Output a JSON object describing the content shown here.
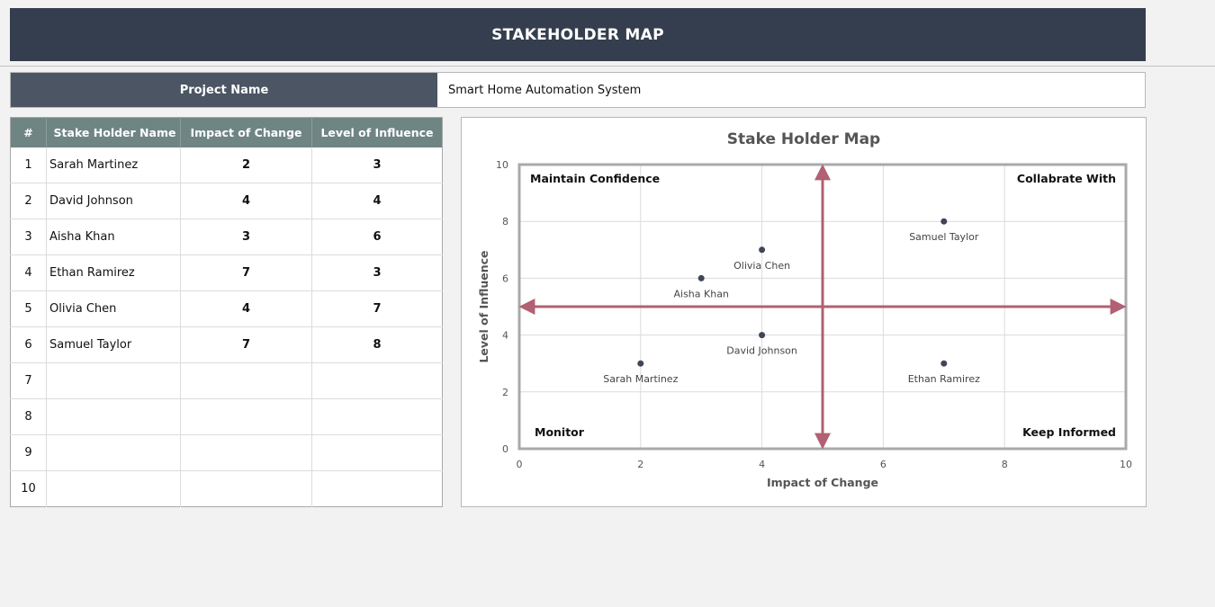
{
  "header": {
    "title": "STAKEHOLDER MAP"
  },
  "project": {
    "label": "Project Name",
    "value": "Smart Home Automation System"
  },
  "table": {
    "columns": [
      "#",
      "Stake Holder Name",
      "Impact of Change",
      "Level of Influence"
    ],
    "rows": [
      {
        "num": "1",
        "name": "Sarah Martinez",
        "impact": "2",
        "influence": "3"
      },
      {
        "num": "2",
        "name": "David Johnson",
        "impact": "4",
        "influence": "4"
      },
      {
        "num": "3",
        "name": "Aisha Khan",
        "impact": "3",
        "influence": "6"
      },
      {
        "num": "4",
        "name": "Ethan Ramirez",
        "impact": "7",
        "influence": "3"
      },
      {
        "num": "5",
        "name": "Olivia Chen",
        "impact": "4",
        "influence": "7"
      },
      {
        "num": "6",
        "name": "Samuel Taylor",
        "impact": "7",
        "influence": "8"
      },
      {
        "num": "7",
        "name": "",
        "impact": "",
        "influence": ""
      },
      {
        "num": "8",
        "name": "",
        "impact": "",
        "influence": ""
      },
      {
        "num": "9",
        "name": "",
        "impact": "",
        "influence": ""
      },
      {
        "num": "10",
        "name": "",
        "impact": "",
        "influence": ""
      }
    ]
  },
  "chart_data": {
    "type": "scatter",
    "title": "Stake Holder Map",
    "xlabel": "Impact of Change",
    "ylabel": "Level of Influence",
    "xlim": [
      0,
      10
    ],
    "ylim": [
      0,
      10
    ],
    "xticks": [
      0,
      2,
      4,
      6,
      8,
      10
    ],
    "yticks": [
      0,
      2,
      4,
      6,
      8,
      10
    ],
    "grid": true,
    "divider": {
      "x": 5,
      "y": 5,
      "color": "#b26073"
    },
    "point_color": "#3f4656",
    "quadrants": {
      "top_left": "Maintain Confidence",
      "top_right": "Collabrate With",
      "bottom_left": "Monitor",
      "bottom_right": "Keep Informed"
    },
    "points": [
      {
        "label": "Sarah Martinez",
        "x": 2,
        "y": 3
      },
      {
        "label": "David Johnson",
        "x": 4,
        "y": 4
      },
      {
        "label": "Aisha Khan",
        "x": 3,
        "y": 6
      },
      {
        "label": "Ethan Ramirez",
        "x": 7,
        "y": 3
      },
      {
        "label": "Olivia Chen",
        "x": 4,
        "y": 7
      },
      {
        "label": "Samuel Taylor",
        "x": 7,
        "y": 8
      }
    ]
  }
}
